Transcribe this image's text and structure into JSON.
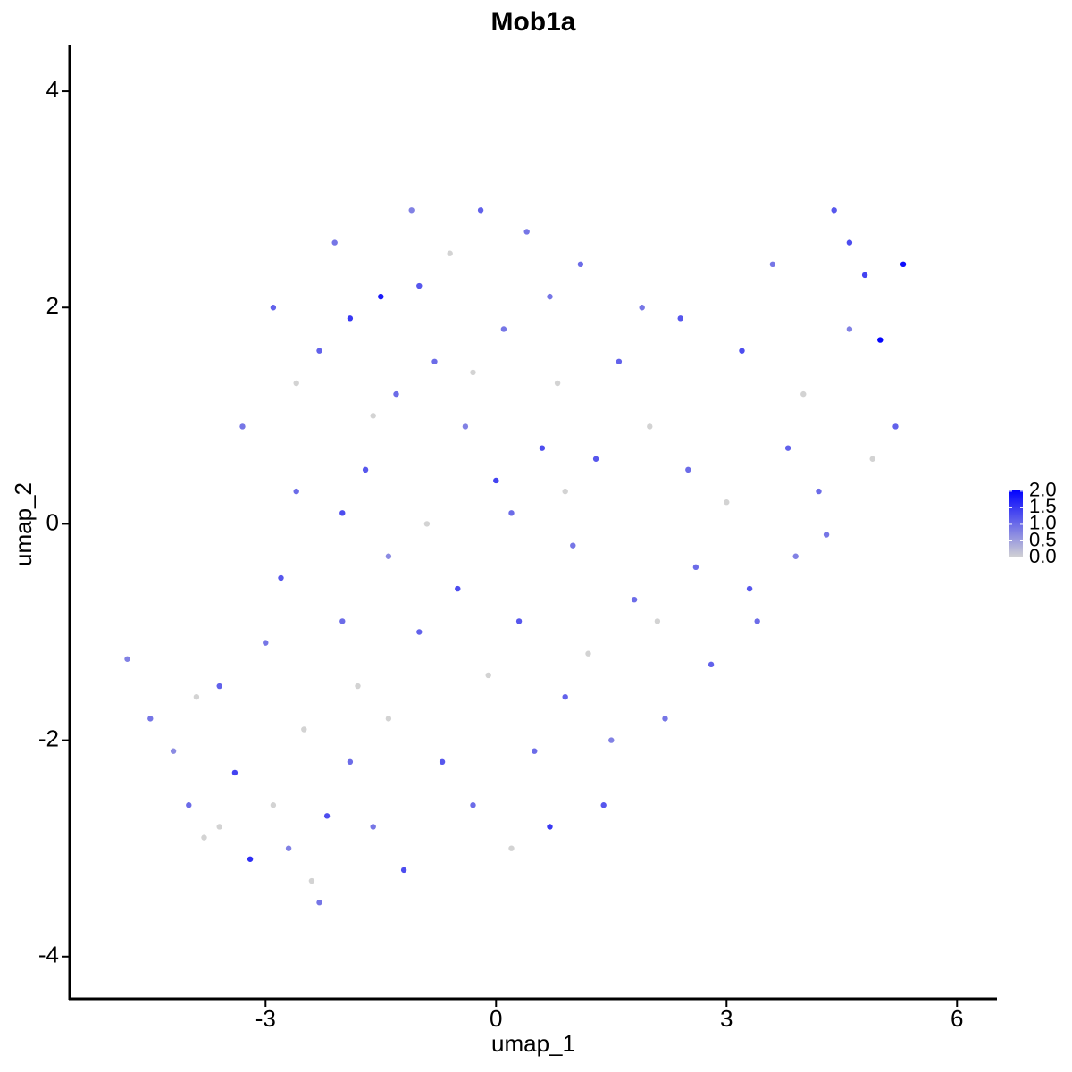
{
  "chart_data": {
    "type": "scatter",
    "title": "Mob1a",
    "x_label": "umap_1",
    "y_label": "umap_2",
    "xlim": [
      -5.55,
      6.52
    ],
    "ylim": [
      -4.39,
      4.43
    ],
    "xticks": [
      -3,
      0,
      3,
      6
    ],
    "yticks": [
      -4,
      -2,
      0,
      2,
      4
    ],
    "x": [
      -4.8,
      -4.5,
      -4.2,
      -4.0,
      -3.8,
      -3.6,
      -3.4,
      -3.2,
      -3.0,
      -2.9,
      -2.8,
      -2.7,
      -2.6,
      -2.5,
      -2.4,
      -2.3,
      -2.2,
      -2.1,
      -2.0,
      -1.9,
      -1.8,
      -1.7,
      -1.6,
      -1.5,
      -1.4,
      -1.3,
      -1.2,
      -1.1,
      -1.0,
      -0.9,
      -0.8,
      -0.7,
      -0.6,
      -0.5,
      -0.4,
      -0.3,
      -0.2,
      -0.1,
      0.0,
      0.1,
      0.2,
      0.3,
      0.4,
      0.5,
      0.6,
      0.7,
      0.8,
      0.9,
      1.0,
      1.1,
      1.2,
      1.3,
      1.5,
      1.6,
      1.8,
      2.0,
      2.2,
      2.4,
      2.6,
      2.8,
      3.0,
      3.2,
      3.4,
      3.6,
      3.8,
      4.0,
      4.2,
      4.4,
      4.6,
      4.8,
      5.0,
      5.2,
      5.3,
      4.3,
      3.3,
      -3.9,
      -3.3,
      -2.9,
      -2.6,
      -2.0,
      -1.9,
      -1.4,
      -1.0,
      -0.3,
      0.2,
      0.7,
      1.4,
      2.1,
      2.5,
      3.9,
      4.9,
      4.6,
      -3.6,
      -2.3,
      -1.6,
      0.9,
      1.9
    ],
    "y": [
      -1.25,
      -1.8,
      -2.1,
      -2.6,
      -2.9,
      -1.5,
      -2.3,
      -3.1,
      -1.1,
      -2.6,
      -0.5,
      -3.0,
      0.3,
      -1.9,
      -3.3,
      1.6,
      -2.7,
      2.6,
      -0.9,
      1.9,
      -1.5,
      0.5,
      -2.8,
      2.1,
      -0.3,
      1.2,
      -3.2,
      2.9,
      -1.0,
      0.0,
      1.5,
      -2.2,
      2.5,
      -0.6,
      0.9,
      -2.6,
      2.9,
      -1.4,
      0.4,
      1.8,
      -3.0,
      -0.9,
      2.7,
      -2.1,
      0.7,
      -2.8,
      1.3,
      -1.6,
      -0.2,
      2.4,
      -1.2,
      0.6,
      -2.0,
      1.5,
      -0.7,
      0.9,
      -1.8,
      1.9,
      -0.4,
      -1.3,
      0.2,
      1.6,
      -0.9,
      2.4,
      0.7,
      1.2,
      0.3,
      2.9,
      1.8,
      2.3,
      1.7,
      0.9,
      2.4,
      -0.1,
      -0.6,
      -1.6,
      0.9,
      2.0,
      1.3,
      0.1,
      -2.2,
      -1.8,
      2.2,
      1.4,
      0.1,
      2.1,
      -2.6,
      -0.9,
      0.5,
      -0.3,
      0.6,
      2.6,
      -2.8,
      -3.5,
      1.0,
      0.3,
      2.0
    ],
    "values": [
      0.8,
      0.9,
      0.7,
      1.0,
      0.0,
      1.1,
      1.4,
      1.6,
      0.9,
      0.0,
      1.2,
      0.8,
      1.0,
      0.0,
      0.0,
      1.1,
      1.3,
      0.9,
      1.0,
      1.5,
      0.0,
      1.2,
      0.9,
      1.8,
      0.7,
      1.0,
      1.3,
      0.8,
      1.1,
      0.0,
      1.0,
      1.2,
      0.0,
      1.3,
      0.8,
      1.0,
      1.1,
      0.0,
      1.4,
      0.9,
      0.0,
      1.2,
      0.9,
      1.0,
      1.3,
      1.5,
      0.0,
      1.1,
      0.9,
      1.0,
      0.0,
      1.2,
      0.8,
      1.1,
      1.0,
      0.0,
      0.9,
      1.2,
      1.0,
      1.1,
      0.0,
      1.3,
      1.0,
      0.9,
      1.1,
      0.0,
      1.0,
      1.2,
      0.8,
      1.4,
      2.0,
      1.1,
      1.9,
      0.9,
      1.2,
      0.0,
      0.9,
      1.1,
      0.0,
      1.3,
      1.0,
      0.0,
      1.2,
      0.0,
      1.0,
      0.9,
      1.2,
      0.0,
      1.0,
      0.8,
      0.0,
      1.3,
      0.0,
      0.9,
      0.0,
      0.0,
      0.9
    ],
    "colorbar": {
      "limits": [
        0,
        2.05
      ],
      "low_color": "#d3d3d3",
      "high_color": "#0000ff",
      "ticks": [
        {
          "value": 0,
          "label": "0.0"
        },
        {
          "value": 0.5,
          "label": "0.5"
        },
        {
          "value": 1,
          "label": "1.0"
        },
        {
          "value": 1.5,
          "label": "1.5"
        },
        {
          "value": 2,
          "label": "2.0"
        }
      ]
    }
  }
}
